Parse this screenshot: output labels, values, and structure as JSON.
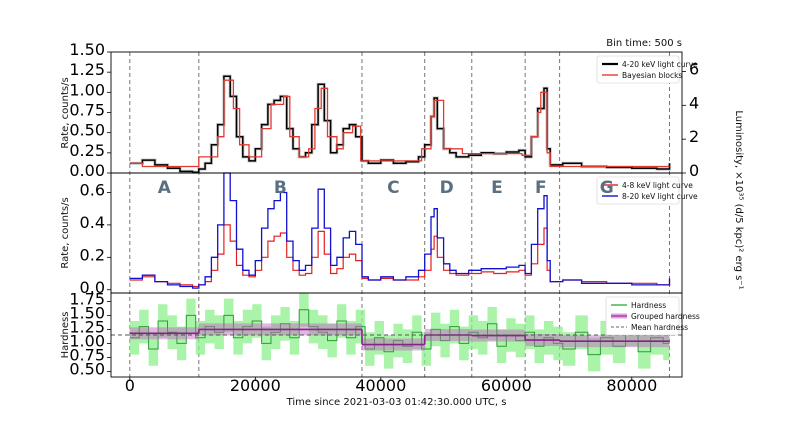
{
  "chart_data": [
    {
      "type": "line",
      "panel": "top",
      "bin_time_label": "Bin time: 500 s",
      "ylabel": "Rate, counts/s",
      "ylabel_right": "Luminosity, ×10³⁵ (d/5 kpc)² erg s⁻¹",
      "ylim": [
        0,
        1.5
      ],
      "yticks": [
        "0.00",
        "0.25",
        "0.50",
        "0.75",
        "1.00",
        "1.25",
        "1.50"
      ],
      "right_ylim": [
        0,
        7.15
      ],
      "right_yticks": [
        "0",
        "2",
        "4",
        "6"
      ],
      "legend": "top-right",
      "series": [
        {
          "name": "4-20 keV light curve",
          "color": "#000000",
          "x": [
            0,
            2000,
            4000,
            6000,
            8000,
            10000,
            11000,
            12000,
            13000,
            14000,
            15000,
            16000,
            17000,
            18000,
            19000,
            20000,
            21000,
            22000,
            23000,
            24000,
            25000,
            26000,
            27000,
            28000,
            29000,
            30000,
            31000,
            32000,
            33000,
            34000,
            35000,
            36000,
            37000,
            38000,
            40000,
            42000,
            44000,
            46000,
            47000,
            48000,
            48500,
            49000,
            50000,
            51000,
            52000,
            54000,
            56000,
            58000,
            60000,
            62000,
            63000,
            64000,
            65000,
            66000,
            66500,
            67000,
            69000,
            72000,
            76000,
            80000,
            84000,
            86000
          ],
          "y": [
            0.12,
            0.16,
            0.1,
            0.06,
            0.02,
            0.01,
            0.05,
            0.12,
            0.35,
            0.6,
            1.2,
            0.95,
            0.45,
            0.2,
            0.15,
            0.3,
            0.6,
            0.85,
            0.9,
            0.95,
            0.55,
            0.3,
            0.2,
            0.25,
            0.6,
            1.1,
            0.65,
            0.25,
            0.35,
            0.55,
            0.6,
            0.45,
            0.15,
            0.12,
            0.16,
            0.12,
            0.14,
            0.2,
            0.35,
            0.7,
            0.93,
            0.55,
            0.3,
            0.25,
            0.2,
            0.22,
            0.25,
            0.24,
            0.26,
            0.28,
            0.2,
            0.45,
            0.8,
            1.05,
            0.3,
            0.1,
            0.12,
            0.08,
            0.07,
            0.06,
            0.05,
            0.12
          ]
        },
        {
          "name": "Bayesian blocks",
          "color": "#e03a30",
          "x": [
            0,
            2000,
            11000,
            14000,
            15000,
            16500,
            17500,
            19000,
            21000,
            22500,
            24500,
            25500,
            27000,
            28500,
            29500,
            30500,
            31500,
            33000,
            34000,
            35500,
            36800,
            40000,
            46500,
            48000,
            48500,
            50000,
            53000,
            62500,
            64000,
            65000,
            65500,
            66500,
            67000,
            86000
          ],
          "y": [
            0.12,
            0.08,
            0.2,
            0.45,
            1.15,
            0.8,
            0.35,
            0.2,
            0.55,
            0.85,
            0.95,
            0.45,
            0.2,
            0.3,
            0.8,
            1.05,
            0.45,
            0.3,
            0.5,
            0.58,
            0.15,
            0.15,
            0.3,
            0.7,
            0.9,
            0.3,
            0.24,
            0.22,
            0.45,
            0.75,
            1.0,
            0.25,
            0.08,
            0.08
          ]
        }
      ]
    },
    {
      "type": "line",
      "panel": "middle",
      "ylabel": "Rate, counts/s",
      "ylim": [
        -0.02,
        0.72
      ],
      "yticks": [
        "0.0",
        "0.2",
        "0.4",
        "0.6"
      ],
      "legend": "top-right",
      "segments": [
        "A",
        "B",
        "C",
        "D",
        "E",
        "F",
        "G"
      ],
      "series": [
        {
          "name": "4-8 keV light curve",
          "color": "#e02020",
          "x": [
            0,
            2000,
            4000,
            6000,
            8000,
            10000,
            11000,
            12000,
            13000,
            14000,
            15000,
            16000,
            17000,
            18000,
            19000,
            20000,
            21000,
            22000,
            23000,
            24000,
            25000,
            26000,
            27000,
            28000,
            29000,
            30000,
            31000,
            32000,
            33000,
            34000,
            35000,
            36000,
            37000,
            38000,
            40000,
            42000,
            44000,
            46000,
            47000,
            48000,
            48500,
            49000,
            50000,
            51000,
            52000,
            54000,
            56000,
            58000,
            60000,
            62000,
            63000,
            64000,
            65000,
            66000,
            66500,
            67000,
            69000,
            72000,
            76000,
            80000,
            84000,
            86000
          ],
          "y": [
            0.06,
            0.08,
            0.05,
            0.04,
            0.03,
            0.02,
            0.03,
            0.05,
            0.12,
            0.22,
            0.4,
            0.3,
            0.15,
            0.09,
            0.08,
            0.12,
            0.2,
            0.3,
            0.33,
            0.35,
            0.2,
            0.12,
            0.09,
            0.1,
            0.2,
            0.36,
            0.22,
            0.1,
            0.13,
            0.2,
            0.22,
            0.18,
            0.07,
            0.06,
            0.07,
            0.06,
            0.06,
            0.08,
            0.12,
            0.25,
            0.33,
            0.2,
            0.12,
            0.1,
            0.09,
            0.1,
            0.11,
            0.1,
            0.11,
            0.12,
            0.09,
            0.16,
            0.28,
            0.38,
            0.12,
            0.05,
            0.06,
            0.05,
            0.04,
            0.04,
            0.03,
            0.06
          ]
        },
        {
          "name": "8-20 keV light curve",
          "color": "#1010d0",
          "x": [
            0,
            2000,
            4000,
            6000,
            8000,
            10000,
            11000,
            12000,
            13000,
            14000,
            15000,
            16000,
            17000,
            18000,
            19000,
            20000,
            21000,
            22000,
            23000,
            24000,
            25000,
            26000,
            27000,
            28000,
            29000,
            30000,
            31000,
            32000,
            33000,
            34000,
            35000,
            36000,
            37000,
            38000,
            40000,
            42000,
            44000,
            46000,
            47000,
            48000,
            48500,
            49000,
            50000,
            51000,
            52000,
            54000,
            56000,
            58000,
            60000,
            62000,
            63000,
            64000,
            65000,
            66000,
            66500,
            67000,
            69000,
            72000,
            76000,
            80000,
            84000,
            86000
          ],
          "y": [
            0.07,
            0.09,
            0.05,
            0.03,
            0.02,
            0.01,
            0.03,
            0.08,
            0.2,
            0.4,
            0.72,
            0.55,
            0.25,
            0.12,
            0.09,
            0.18,
            0.38,
            0.5,
            0.55,
            0.6,
            0.3,
            0.18,
            0.12,
            0.15,
            0.38,
            0.62,
            0.38,
            0.15,
            0.2,
            0.32,
            0.36,
            0.28,
            0.08,
            0.06,
            0.08,
            0.06,
            0.08,
            0.12,
            0.22,
            0.45,
            0.5,
            0.32,
            0.16,
            0.12,
            0.1,
            0.12,
            0.13,
            0.13,
            0.14,
            0.15,
            0.1,
            0.28,
            0.5,
            0.58,
            0.18,
            0.05,
            0.06,
            0.04,
            0.04,
            0.03,
            0.03,
            0.07
          ]
        }
      ]
    },
    {
      "type": "line",
      "panel": "bottom",
      "ylabel": "Hardness",
      "xlabel": "Time since 2021-03-03 01:42:30.000 UTC, s",
      "ylim": [
        0.4,
        1.9
      ],
      "yticks": [
        "0.50",
        "0.75",
        "1.00",
        "1.25",
        "1.50",
        "1.75"
      ],
      "xlim": [
        -3000,
        88000
      ],
      "xticks": [
        "0",
        "20000",
        "40000",
        "60000",
        "80000"
      ],
      "xtick_values": [
        0,
        20000,
        40000,
        60000,
        80000
      ],
      "legend": "top-right",
      "mean_hardness": 1.15,
      "boundaries": [
        0,
        11000,
        37000,
        47000,
        54500,
        63000,
        68500,
        86000
      ],
      "grouped": [
        {
          "x0": 0,
          "x1": 11000,
          "y": 1.18
        },
        {
          "x0": 11000,
          "x1": 37000,
          "y": 1.25
        },
        {
          "x0": 37000,
          "x1": 47000,
          "y": 0.98
        },
        {
          "x0": 47000,
          "x1": 54500,
          "y": 1.15
        },
        {
          "x0": 54500,
          "x1": 63000,
          "y": 1.14
        },
        {
          "x0": 63000,
          "x1": 68500,
          "y": 1.06
        },
        {
          "x0": 68500,
          "x1": 86000,
          "y": 1.04
        }
      ],
      "series": [
        {
          "name": "Hardness",
          "color": "#3cb043",
          "x": [
            0,
            1500,
            3000,
            4500,
            6000,
            7500,
            9000,
            10500,
            12000,
            13500,
            15000,
            16500,
            18000,
            19500,
            21000,
            22500,
            24000,
            25500,
            27000,
            28500,
            30000,
            31500,
            33000,
            34500,
            36000,
            37500,
            39000,
            40500,
            42000,
            43500,
            45000,
            46500,
            48000,
            49500,
            51000,
            52500,
            54000,
            55500,
            57000,
            58500,
            60000,
            61500,
            63000,
            64500,
            66000,
            67500,
            69000,
            71000,
            73000,
            75000,
            77000,
            79000,
            81000,
            83000,
            85000
          ],
          "y": [
            1.1,
            1.3,
            0.9,
            1.4,
            1.2,
            1.0,
            1.5,
            1.1,
            1.3,
            1.2,
            1.5,
            1.1,
            1.3,
            1.4,
            1.0,
            1.2,
            1.35,
            1.1,
            1.6,
            1.3,
            1.2,
            1.05,
            1.4,
            1.1,
            1.3,
            0.9,
            1.1,
            0.85,
            1.05,
            0.95,
            1.2,
            0.9,
            1.25,
            1.05,
            1.3,
            1.0,
            1.2,
            1.1,
            1.35,
            0.95,
            1.15,
            1.05,
            1.2,
            0.95,
            1.1,
            1.0,
            0.9,
            1.2,
            0.8,
            1.1,
            0.95,
            1.25,
            0.85,
            1.1,
            1.0
          ],
          "err": 0.3
        },
        {
          "name": "Grouped hardness",
          "color": "#b040b0"
        },
        {
          "name": "Mean hardness",
          "color": "#666666"
        }
      ]
    }
  ]
}
